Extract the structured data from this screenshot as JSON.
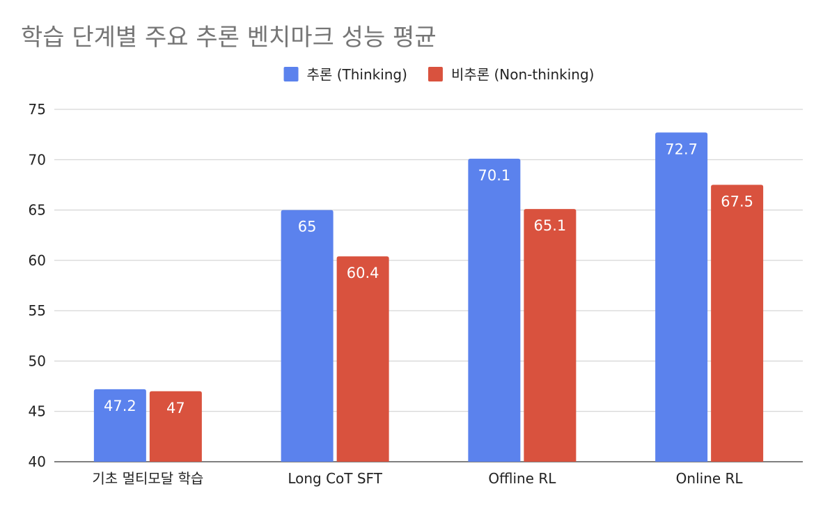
{
  "chart_data": {
    "type": "bar",
    "title": "학습 단계별 주요 추론 벤치마크 성능 평균",
    "xlabel": "",
    "ylabel": "",
    "categories": [
      "기초 멀티모달 학습",
      "Long CoT SFT",
      "Offline RL",
      "Online RL"
    ],
    "series": [
      {
        "name": "추론 (Thinking)",
        "color": "#5b82ed",
        "values": [
          47.2,
          65,
          70.1,
          72.7
        ]
      },
      {
        "name": "비추론 (Non-thinking)",
        "color": "#d9523e",
        "values": [
          47,
          60.4,
          65.1,
          67.5
        ]
      }
    ],
    "ylim": [
      40,
      75
    ],
    "yticks": [
      40,
      45,
      50,
      55,
      60,
      65,
      70,
      75
    ],
    "grid": true,
    "legend_position": "top-center",
    "data_labels": true
  }
}
